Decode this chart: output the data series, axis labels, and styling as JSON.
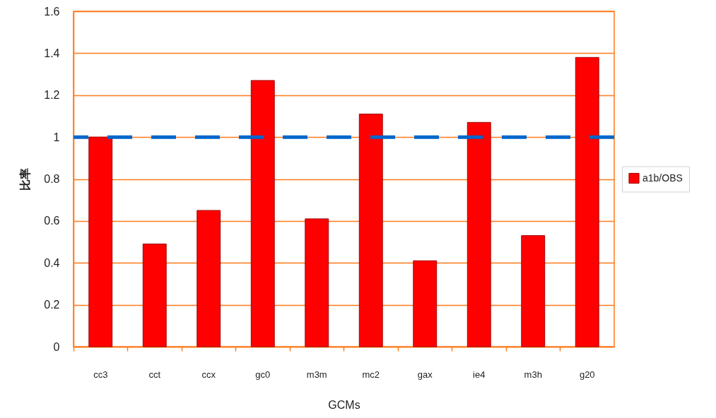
{
  "chart_data": {
    "type": "bar",
    "xlabel": "GCMs",
    "ylabel": "比率",
    "categories": [
      "cc3",
      "cct",
      "ccx",
      "gc0",
      "m3m",
      "mc2",
      "gax",
      "ie4",
      "m3h",
      "g20"
    ],
    "series": [
      {
        "name": "a1b/OBS",
        "color": "#ff0000",
        "values": [
          1.0,
          0.49,
          0.65,
          1.27,
          0.61,
          1.11,
          0.41,
          1.07,
          0.53,
          1.38
        ]
      }
    ],
    "ylim": [
      0,
      1.6
    ],
    "yticks": [
      0,
      0.2,
      0.4,
      0.6,
      0.8,
      1,
      1.2,
      1.4,
      1.6
    ],
    "grid": "y",
    "legend": "right",
    "ref_lines": [
      {
        "axis": "y",
        "value": 1,
        "color": "#0066cc",
        "line_style": "dashed"
      }
    ]
  }
}
